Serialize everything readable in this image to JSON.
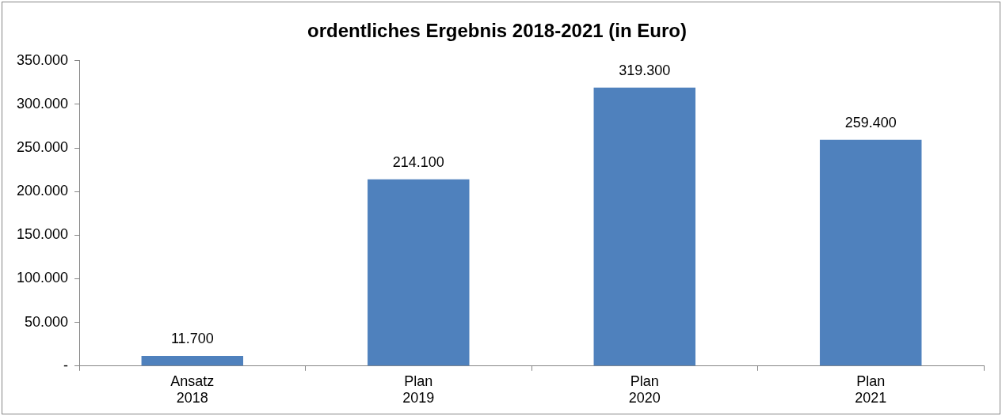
{
  "chart_data": {
    "type": "bar",
    "title": "ordentliches Ergebnis 2018-2021 (in Euro)",
    "categories": [
      "Ansatz\n2018",
      "Plan\n2019",
      "Plan\n2020",
      "Plan\n2021"
    ],
    "values": [
      11700,
      214100,
      319300,
      259400
    ],
    "color": "#4f81bd",
    "ylim": [
      0,
      350000
    ],
    "yticks": [
      {
        "value": 0,
        "label": "-"
      },
      {
        "value": 50000,
        "label": "50.000"
      },
      {
        "value": 100000,
        "label": "100.000"
      },
      {
        "value": 150000,
        "label": "150.000"
      },
      {
        "value": 200000,
        "label": "200.000"
      },
      {
        "value": 250000,
        "label": "250.000"
      },
      {
        "value": 300000,
        "label": "300.000"
      },
      {
        "value": 350000,
        "label": "350.000"
      }
    ],
    "value_labels": [
      "11.700",
      "214.100",
      "319.300",
      "259.400"
    ],
    "grid": false,
    "legend": false
  }
}
